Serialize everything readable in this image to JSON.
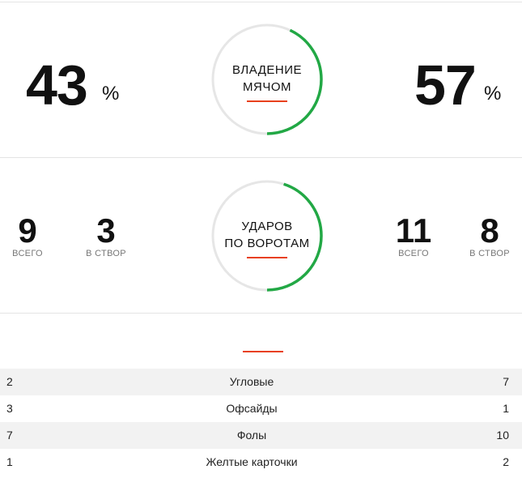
{
  "possession": {
    "title_line1": "ВЛАДЕНИЕ",
    "title_line2": "МЯЧОМ",
    "home_value": "43",
    "away_value": "57",
    "unit": "%",
    "home_fraction": 0.43
  },
  "shots": {
    "title_line1": "УДАРОВ",
    "title_line2": "ПО ВОРОТАМ",
    "home_total": "9",
    "home_on_target": "3",
    "away_total": "11",
    "away_on_target": "8",
    "label_total": "ВСЕГО",
    "label_on_target": "В СТВОР",
    "home_fraction": 0.45
  },
  "colors": {
    "accent": "#e8401c",
    "ring_fill": "#22a845",
    "ring_track": "#e6e6e6"
  },
  "rows": [
    {
      "home": "2",
      "label": "Угловые",
      "away": "7"
    },
    {
      "home": "3",
      "label": "Офсайды",
      "away": "1"
    },
    {
      "home": "7",
      "label": "Фолы",
      "away": "10"
    },
    {
      "home": "1",
      "label": "Желтые карточки",
      "away": "2"
    }
  ]
}
